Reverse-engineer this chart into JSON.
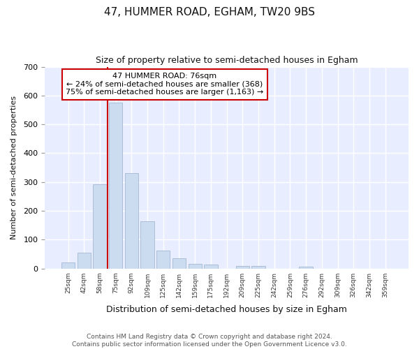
{
  "title": "47, HUMMER ROAD, EGHAM, TW20 9BS",
  "subtitle": "Size of property relative to semi-detached houses in Egham",
  "xlabel": "Distribution of semi-detached houses by size in Egham",
  "ylabel": "Number of semi-detached properties",
  "categories": [
    "25sqm",
    "42sqm",
    "58sqm",
    "75sqm",
    "92sqm",
    "109sqm",
    "125sqm",
    "142sqm",
    "159sqm",
    "175sqm",
    "192sqm",
    "209sqm",
    "225sqm",
    "242sqm",
    "259sqm",
    "276sqm",
    "292sqm",
    "309sqm",
    "326sqm",
    "342sqm",
    "359sqm"
  ],
  "values": [
    22,
    55,
    293,
    575,
    330,
    163,
    62,
    35,
    15,
    13,
    0,
    8,
    8,
    0,
    0,
    7,
    0,
    0,
    0,
    0,
    0
  ],
  "bar_color": "#ccdcf0",
  "bar_edge_color": "#aabfd8",
  "vline_x_index": 3,
  "vline_color": "#cc0000",
  "annotation_text": "47 HUMMER ROAD: 76sqm\n← 24% of semi-detached houses are smaller (368)\n75% of semi-detached houses are larger (1,163) →",
  "annotation_box_color": "white",
  "annotation_box_edge_color": "#cc0000",
  "ylim": [
    0,
    700
  ],
  "yticks": [
    0,
    100,
    200,
    300,
    400,
    500,
    600,
    700
  ],
  "footer": "Contains HM Land Registry data © Crown copyright and database right 2024.\nContains public sector information licensed under the Open Government Licence v3.0.",
  "bg_color": "#ffffff",
  "plot_bg_color": "#e8eeff"
}
